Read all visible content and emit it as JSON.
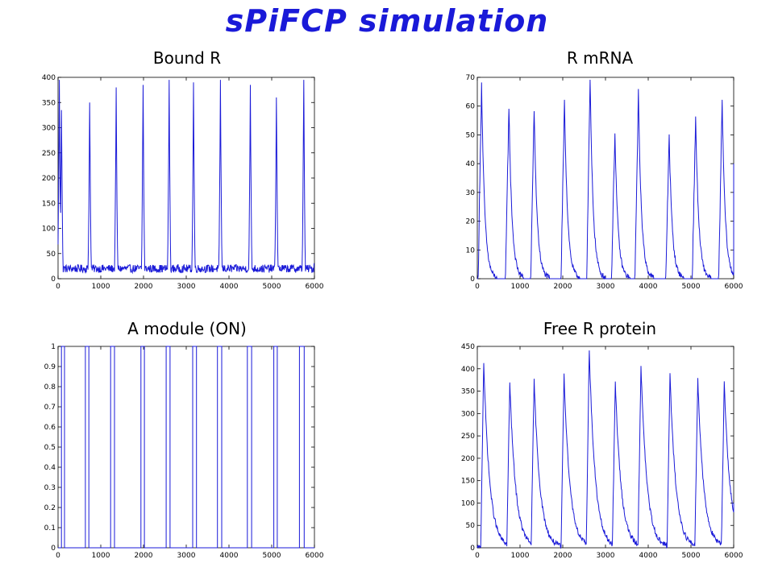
{
  "title": "sPiFCP simulation",
  "chart_data": [
    {
      "type": "line",
      "title": "Bound R",
      "xlim": [
        0,
        6000
      ],
      "ylim": [
        0,
        400
      ],
      "xticks": [
        0,
        1000,
        2000,
        3000,
        4000,
        5000,
        6000
      ],
      "yticks": [
        0,
        50,
        100,
        150,
        200,
        250,
        300,
        350,
        400
      ],
      "color": "#1a1ad8",
      "series": [
        {
          "shape": "pulses",
          "baseline": 20,
          "noise": 8,
          "peaks": [
            [
              30,
              395
            ],
            [
              80,
              335
            ],
            [
              740,
              350
            ],
            [
              1360,
              380
            ],
            [
              1990,
              385
            ],
            [
              2600,
              395
            ],
            [
              3170,
              390
            ],
            [
              3800,
              395
            ],
            [
              4500,
              385
            ],
            [
              5110,
              360
            ],
            [
              5750,
              395
            ]
          ],
          "end_value": 30
        }
      ]
    },
    {
      "type": "line",
      "title": "R mRNA",
      "xlim": [
        0,
        6000
      ],
      "ylim": [
        0,
        70
      ],
      "xticks": [
        0,
        1000,
        2000,
        3000,
        4000,
        5000,
        6000
      ],
      "yticks": [
        0,
        10,
        20,
        30,
        40,
        50,
        60,
        70
      ],
      "color": "#1a1ad8",
      "series": [
        {
          "shape": "sawtooth",
          "peaks": [
            [
              100,
              68
            ],
            [
              740,
              60
            ],
            [
              1330,
              59
            ],
            [
              2040,
              63
            ],
            [
              2640,
              69
            ],
            [
              3220,
              51
            ],
            [
              3770,
              65
            ],
            [
              4490,
              50
            ],
            [
              5110,
              56
            ],
            [
              5730,
              62
            ]
          ],
          "end_value": 40
        }
      ]
    },
    {
      "type": "line",
      "title": "A module (ON)",
      "xlim": [
        0,
        6000
      ],
      "ylim": [
        0,
        1
      ],
      "xticks": [
        0,
        1000,
        2000,
        3000,
        4000,
        5000,
        6000
      ],
      "yticks": [
        0,
        0.1,
        0.2,
        0.3,
        0.4,
        0.5,
        0.6,
        0.7,
        0.8,
        0.9,
        1
      ],
      "color": "#1a1ad8",
      "series": [
        {
          "shape": "on-off",
          "on_intervals": [
            [
              80,
              150
            ],
            [
              640,
              720
            ],
            [
              1230,
              1320
            ],
            [
              1940,
              2020
            ],
            [
              2530,
              2620
            ],
            [
              3150,
              3240
            ],
            [
              3730,
              3830
            ],
            [
              4430,
              4530
            ],
            [
              5050,
              5130
            ],
            [
              5650,
              5760
            ]
          ]
        }
      ]
    },
    {
      "type": "line",
      "title": "Free R protein",
      "xlim": [
        0,
        6000
      ],
      "ylim": [
        0,
        450
      ],
      "xticks": [
        0,
        1000,
        2000,
        3000,
        4000,
        5000,
        6000
      ],
      "yticks": [
        0,
        50,
        100,
        150,
        200,
        250,
        300,
        350,
        400,
        450
      ],
      "color": "#1a1ad8",
      "series": [
        {
          "shape": "decay",
          "noise": 6,
          "peaks": [
            [
              150,
              415
            ],
            [
              760,
              370
            ],
            [
              1330,
              375
            ],
            [
              2030,
              390
            ],
            [
              2620,
              445
            ],
            [
              3230,
              370
            ],
            [
              3830,
              410
            ],
            [
              4510,
              385
            ],
            [
              5160,
              380
            ],
            [
              5780,
              370
            ]
          ],
          "end_value": 100
        }
      ]
    }
  ]
}
